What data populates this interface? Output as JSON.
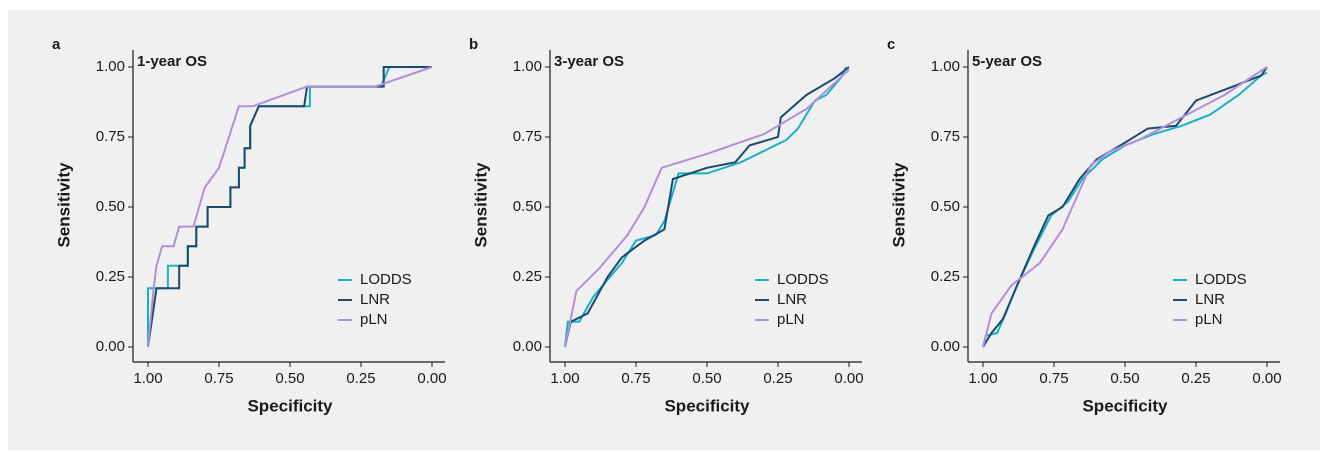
{
  "chart_data": [
    {
      "type": "line",
      "label": "a",
      "title": "1-year OS",
      "xlabel": "Specificity",
      "ylabel": "Sensitivity",
      "xlim": [
        1,
        0
      ],
      "ylim": [
        0,
        1
      ],
      "xticks": [
        {
          "value": 1,
          "label": "1.00"
        },
        {
          "value": 0.75,
          "label": "0.75"
        },
        {
          "value": 0.5,
          "label": "0.50"
        },
        {
          "value": 0.25,
          "label": "0.25"
        },
        {
          "value": 0,
          "label": "0.00"
        }
      ],
      "yticks": [
        {
          "value": 0,
          "label": "0.00"
        },
        {
          "value": 0.25,
          "label": "0.25"
        },
        {
          "value": 0.5,
          "label": "0.50"
        },
        {
          "value": 0.75,
          "label": "0.75"
        },
        {
          "value": 1,
          "label": "1.00"
        }
      ],
      "series": [
        {
          "name": "LODDS",
          "color": "#1ab0c8",
          "x": [
            1,
            1,
            0.96,
            0.93,
            0.93,
            0.86,
            0.86,
            0.83,
            0.83,
            0.79,
            0.79,
            0.71,
            0.71,
            0.68,
            0.68,
            0.66,
            0.66,
            0.64,
            0.64,
            0.61,
            0.45,
            0.43,
            0.43,
            0.18,
            0.15,
            0
          ],
          "values": [
            0,
            0.21,
            0.21,
            0.21,
            0.29,
            0.29,
            0.36,
            0.36,
            0.43,
            0.43,
            0.5,
            0.5,
            0.57,
            0.57,
            0.64,
            0.64,
            0.71,
            0.71,
            0.79,
            0.86,
            0.86,
            0.86,
            0.93,
            0.93,
            1,
            1
          ]
        },
        {
          "name": "LNR",
          "color": "#1c4a6e",
          "x": [
            1,
            0.97,
            0.89,
            0.89,
            0.86,
            0.86,
            0.83,
            0.83,
            0.79,
            0.79,
            0.71,
            0.71,
            0.68,
            0.68,
            0.66,
            0.66,
            0.64,
            0.64,
            0.61,
            0.45,
            0.44,
            0.2,
            0.17,
            0.17,
            0
          ],
          "values": [
            0,
            0.21,
            0.21,
            0.29,
            0.29,
            0.36,
            0.36,
            0.43,
            0.43,
            0.5,
            0.5,
            0.57,
            0.57,
            0.64,
            0.64,
            0.71,
            0.71,
            0.79,
            0.86,
            0.86,
            0.93,
            0.93,
            0.93,
            1,
            1
          ]
        },
        {
          "name": "pLN",
          "color": "#b08fd8",
          "x": [
            1,
            0.98,
            0.97,
            0.95,
            0.91,
            0.89,
            0.84,
            0.8,
            0.75,
            0.68,
            0.63,
            0.44,
            0.2,
            0
          ],
          "values": [
            0,
            0.21,
            0.29,
            0.36,
            0.36,
            0.43,
            0.43,
            0.57,
            0.64,
            0.86,
            0.86,
            0.93,
            0.93,
            1
          ]
        }
      ]
    },
    {
      "type": "line",
      "label": "b",
      "title": "3-year OS",
      "xlabel": "Specificity",
      "ylabel": "Sensitivity",
      "xlim": [
        1,
        0
      ],
      "ylim": [
        0,
        1
      ],
      "xticks": [
        {
          "value": 1,
          "label": "1.00"
        },
        {
          "value": 0.75,
          "label": "0.75"
        },
        {
          "value": 0.5,
          "label": "0.50"
        },
        {
          "value": 0.25,
          "label": "0.25"
        },
        {
          "value": 0,
          "label": "0.00"
        }
      ],
      "yticks": [
        {
          "value": 0,
          "label": "0.00"
        },
        {
          "value": 0.25,
          "label": "0.25"
        },
        {
          "value": 0.5,
          "label": "0.50"
        },
        {
          "value": 0.75,
          "label": "0.75"
        },
        {
          "value": 1,
          "label": "1.00"
        }
      ],
      "series": [
        {
          "name": "LODDS",
          "color": "#1ab0c8",
          "x": [
            1,
            0.99,
            0.95,
            0.9,
            0.8,
            0.75,
            0.68,
            0.65,
            0.6,
            0.5,
            0.38,
            0.3,
            0.22,
            0.18,
            0.12,
            0.08,
            0.03,
            0.01
          ],
          "values": [
            0,
            0.09,
            0.09,
            0.18,
            0.3,
            0.38,
            0.4,
            0.45,
            0.62,
            0.62,
            0.66,
            0.7,
            0.74,
            0.78,
            0.88,
            0.9,
            0.96,
            1
          ]
        },
        {
          "name": "LNR",
          "color": "#1c4a6e",
          "x": [
            1,
            0.98,
            0.92,
            0.85,
            0.8,
            0.72,
            0.65,
            0.62,
            0.5,
            0.4,
            0.35,
            0.25,
            0.24,
            0.15,
            0.05,
            0
          ],
          "values": [
            0,
            0.09,
            0.12,
            0.25,
            0.32,
            0.38,
            0.42,
            0.6,
            0.64,
            0.66,
            0.72,
            0.75,
            0.82,
            0.9,
            0.96,
            1
          ]
        },
        {
          "name": "pLN",
          "color": "#b08fd8",
          "x": [
            1,
            0.96,
            0.88,
            0.78,
            0.72,
            0.66,
            0.5,
            0.3,
            0.15,
            0
          ],
          "values": [
            0,
            0.2,
            0.28,
            0.4,
            0.5,
            0.64,
            0.69,
            0.76,
            0.85,
            0.99
          ]
        }
      ]
    },
    {
      "type": "line",
      "label": "c",
      "title": "5-year OS",
      "xlabel": "Specificity",
      "ylabel": "Sensitivity",
      "xlim": [
        1,
        0
      ],
      "ylim": [
        0,
        1
      ],
      "xticks": [
        {
          "value": 1,
          "label": "1.00"
        },
        {
          "value": 0.75,
          "label": "0.75"
        },
        {
          "value": 0.5,
          "label": "0.50"
        },
        {
          "value": 0.25,
          "label": "0.25"
        },
        {
          "value": 0,
          "label": "0.00"
        }
      ],
      "yticks": [
        {
          "value": 0,
          "label": "0.00"
        },
        {
          "value": 0.25,
          "label": "0.25"
        },
        {
          "value": 0.5,
          "label": "0.50"
        },
        {
          "value": 0.75,
          "label": "0.75"
        },
        {
          "value": 1,
          "label": "1.00"
        }
      ],
      "series": [
        {
          "name": "LODDS",
          "color": "#1ab0c8",
          "x": [
            1,
            0.99,
            0.95,
            0.92,
            0.88,
            0.82,
            0.76,
            0.7,
            0.65,
            0.58,
            0.5,
            0.4,
            0.3,
            0.2,
            0.1,
            0.02,
            0
          ],
          "values": [
            0,
            0.04,
            0.05,
            0.12,
            0.22,
            0.35,
            0.47,
            0.52,
            0.6,
            0.67,
            0.72,
            0.76,
            0.79,
            0.83,
            0.9,
            0.97,
            0.98
          ]
        },
        {
          "name": "LNR",
          "color": "#1c4a6e",
          "x": [
            1,
            0.97,
            0.93,
            0.88,
            0.82,
            0.77,
            0.72,
            0.66,
            0.6,
            0.5,
            0.42,
            0.32,
            0.25,
            0.12,
            0.02,
            0
          ],
          "values": [
            0,
            0.05,
            0.1,
            0.22,
            0.36,
            0.47,
            0.5,
            0.6,
            0.67,
            0.73,
            0.78,
            0.79,
            0.88,
            0.93,
            0.97,
            1
          ]
        },
        {
          "name": "pLN",
          "color": "#b08fd8",
          "x": [
            1,
            0.97,
            0.9,
            0.8,
            0.72,
            0.62,
            0.55,
            0.45,
            0.3,
            0.15,
            0
          ],
          "values": [
            0,
            0.12,
            0.22,
            0.3,
            0.42,
            0.65,
            0.7,
            0.74,
            0.82,
            0.9,
            1
          ]
        }
      ]
    }
  ]
}
